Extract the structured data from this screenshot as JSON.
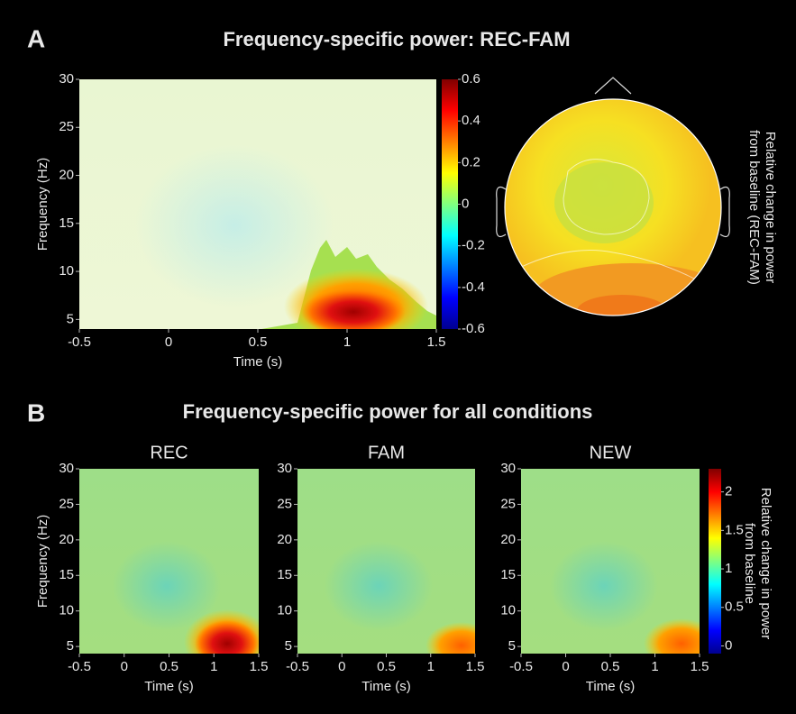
{
  "panels": [
    {
      "label": "A",
      "title": "Frequency-specific power: REC-FAM"
    },
    {
      "label": "B",
      "title": "Frequency-specific power for all conditions"
    }
  ],
  "chart_data": [
    {
      "type": "heatmap",
      "xlabel": "Time (s)",
      "ylabel": "Frequency (Hz)",
      "xlim": [
        -0.5,
        1.5
      ],
      "xticks": [
        -0.5,
        0,
        0.5,
        1,
        1.5
      ],
      "ylim": [
        4,
        30
      ],
      "yticks": [
        5,
        10,
        15,
        20,
        25,
        30
      ],
      "clim": [
        -0.6,
        0.6
      ],
      "cticks": [
        -0.6,
        -0.4,
        -0.2,
        0,
        0.2,
        0.4,
        0.6
      ]
    },
    {
      "type": "topomap",
      "colorbar_label": [
        "Relative change in power",
        "from baseline (REC-FAM)"
      ]
    },
    {
      "type": "heatmap",
      "title": "REC",
      "xlabel": "Time (s)",
      "ylabel": "Frequency (Hz)",
      "xlim": [
        -0.5,
        1.5
      ],
      "xticks": [
        -0.5,
        0,
        0.5,
        1,
        1.5
      ],
      "ylim": [
        4,
        30
      ],
      "yticks": [
        5,
        10,
        15,
        20,
        25,
        30
      ]
    },
    {
      "type": "heatmap",
      "title": "FAM",
      "xlabel": "Time (s)",
      "xlim": [
        -0.5,
        1.5
      ],
      "xticks": [
        -0.5,
        0,
        0.5,
        1,
        1.5
      ],
      "ylim": [
        4,
        30
      ],
      "yticks": [
        5,
        10,
        15,
        20,
        25,
        30
      ]
    },
    {
      "type": "heatmap",
      "title": "NEW",
      "xlabel": "Time (s)",
      "xlim": [
        -0.5,
        1.5
      ],
      "xticks": [
        -0.5,
        0,
        0.5,
        1,
        1.5
      ],
      "ylim": [
        4,
        30
      ],
      "yticks": [
        5,
        10,
        15,
        20,
        25,
        30
      ],
      "clim": [
        -0.1,
        2.3
      ],
      "cticks": [
        0,
        0.5,
        1,
        1.5,
        2
      ],
      "colorbar_label": [
        "Relative change in power",
        "from baseline"
      ]
    }
  ]
}
